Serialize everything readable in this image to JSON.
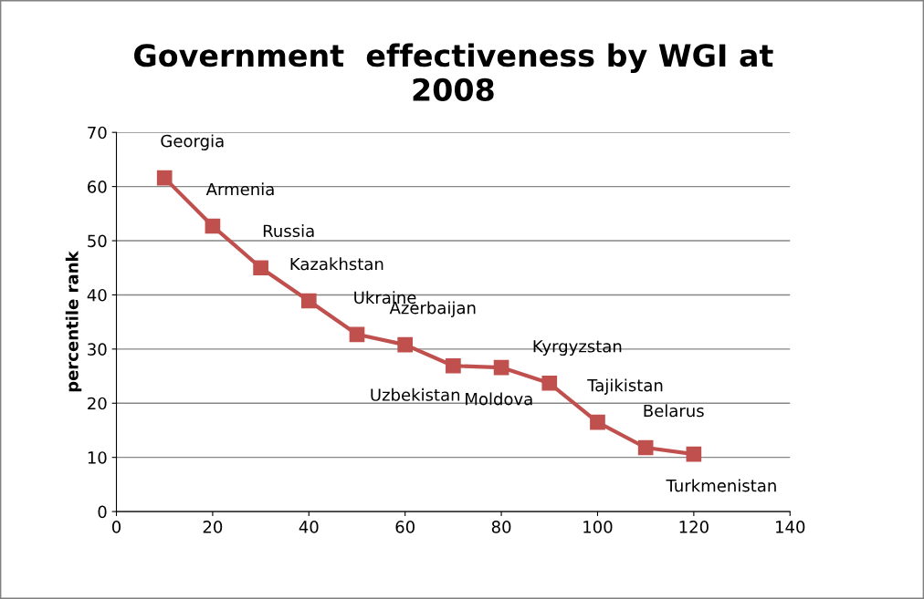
{
  "chart_data": {
    "type": "line",
    "title": "Government  effectiveness by WGI at\n2008",
    "ylabel": "percentile rank",
    "x": [
      10,
      20,
      30,
      40,
      50,
      60,
      70,
      80,
      90,
      100,
      110,
      120
    ],
    "series": [
      {
        "color": "#c0504d",
        "values": [
          61.6,
          52.7,
          45.0,
          38.9,
          32.7,
          30.8,
          26.9,
          26.6,
          23.7,
          16.5,
          11.8,
          10.6
        ]
      }
    ],
    "annotations": [
      {
        "text": "Georgia",
        "x": 10,
        "y": 61.6
      },
      {
        "text": "Armenia",
        "x": 20,
        "y": 52.7
      },
      {
        "text": "Russia",
        "x": 30,
        "y": 45.0
      },
      {
        "text": "Kazakhstan",
        "x": 40,
        "y": 38.9
      },
      {
        "text": "Ukraine",
        "x": 50,
        "y": 32.7
      },
      {
        "text": "Azerbaijan",
        "x": 60,
        "y": 30.8
      },
      {
        "text": "Uzbekistan",
        "x": 70,
        "y": 26.9
      },
      {
        "text": "Moldova",
        "x": 80,
        "y": 26.6
      },
      {
        "text": "Kyrgyzstan",
        "x": 90,
        "y": 23.7
      },
      {
        "text": "Tajikistan",
        "x": 100,
        "y": 16.5
      },
      {
        "text": "Belarus",
        "x": 110,
        "y": 11.8
      },
      {
        "text": "Turkmenistan",
        "x": 120,
        "y": 10.6
      }
    ],
    "xlim": [
      0,
      140
    ],
    "xticks": [
      0,
      20,
      40,
      60,
      80,
      100,
      120,
      140
    ],
    "ylim": [
      0,
      70
    ],
    "yticks": [
      0,
      10,
      20,
      30,
      40,
      50,
      60,
      70
    ],
    "grid": "y",
    "legend": false,
    "marker": "square",
    "line_style": "solid"
  }
}
